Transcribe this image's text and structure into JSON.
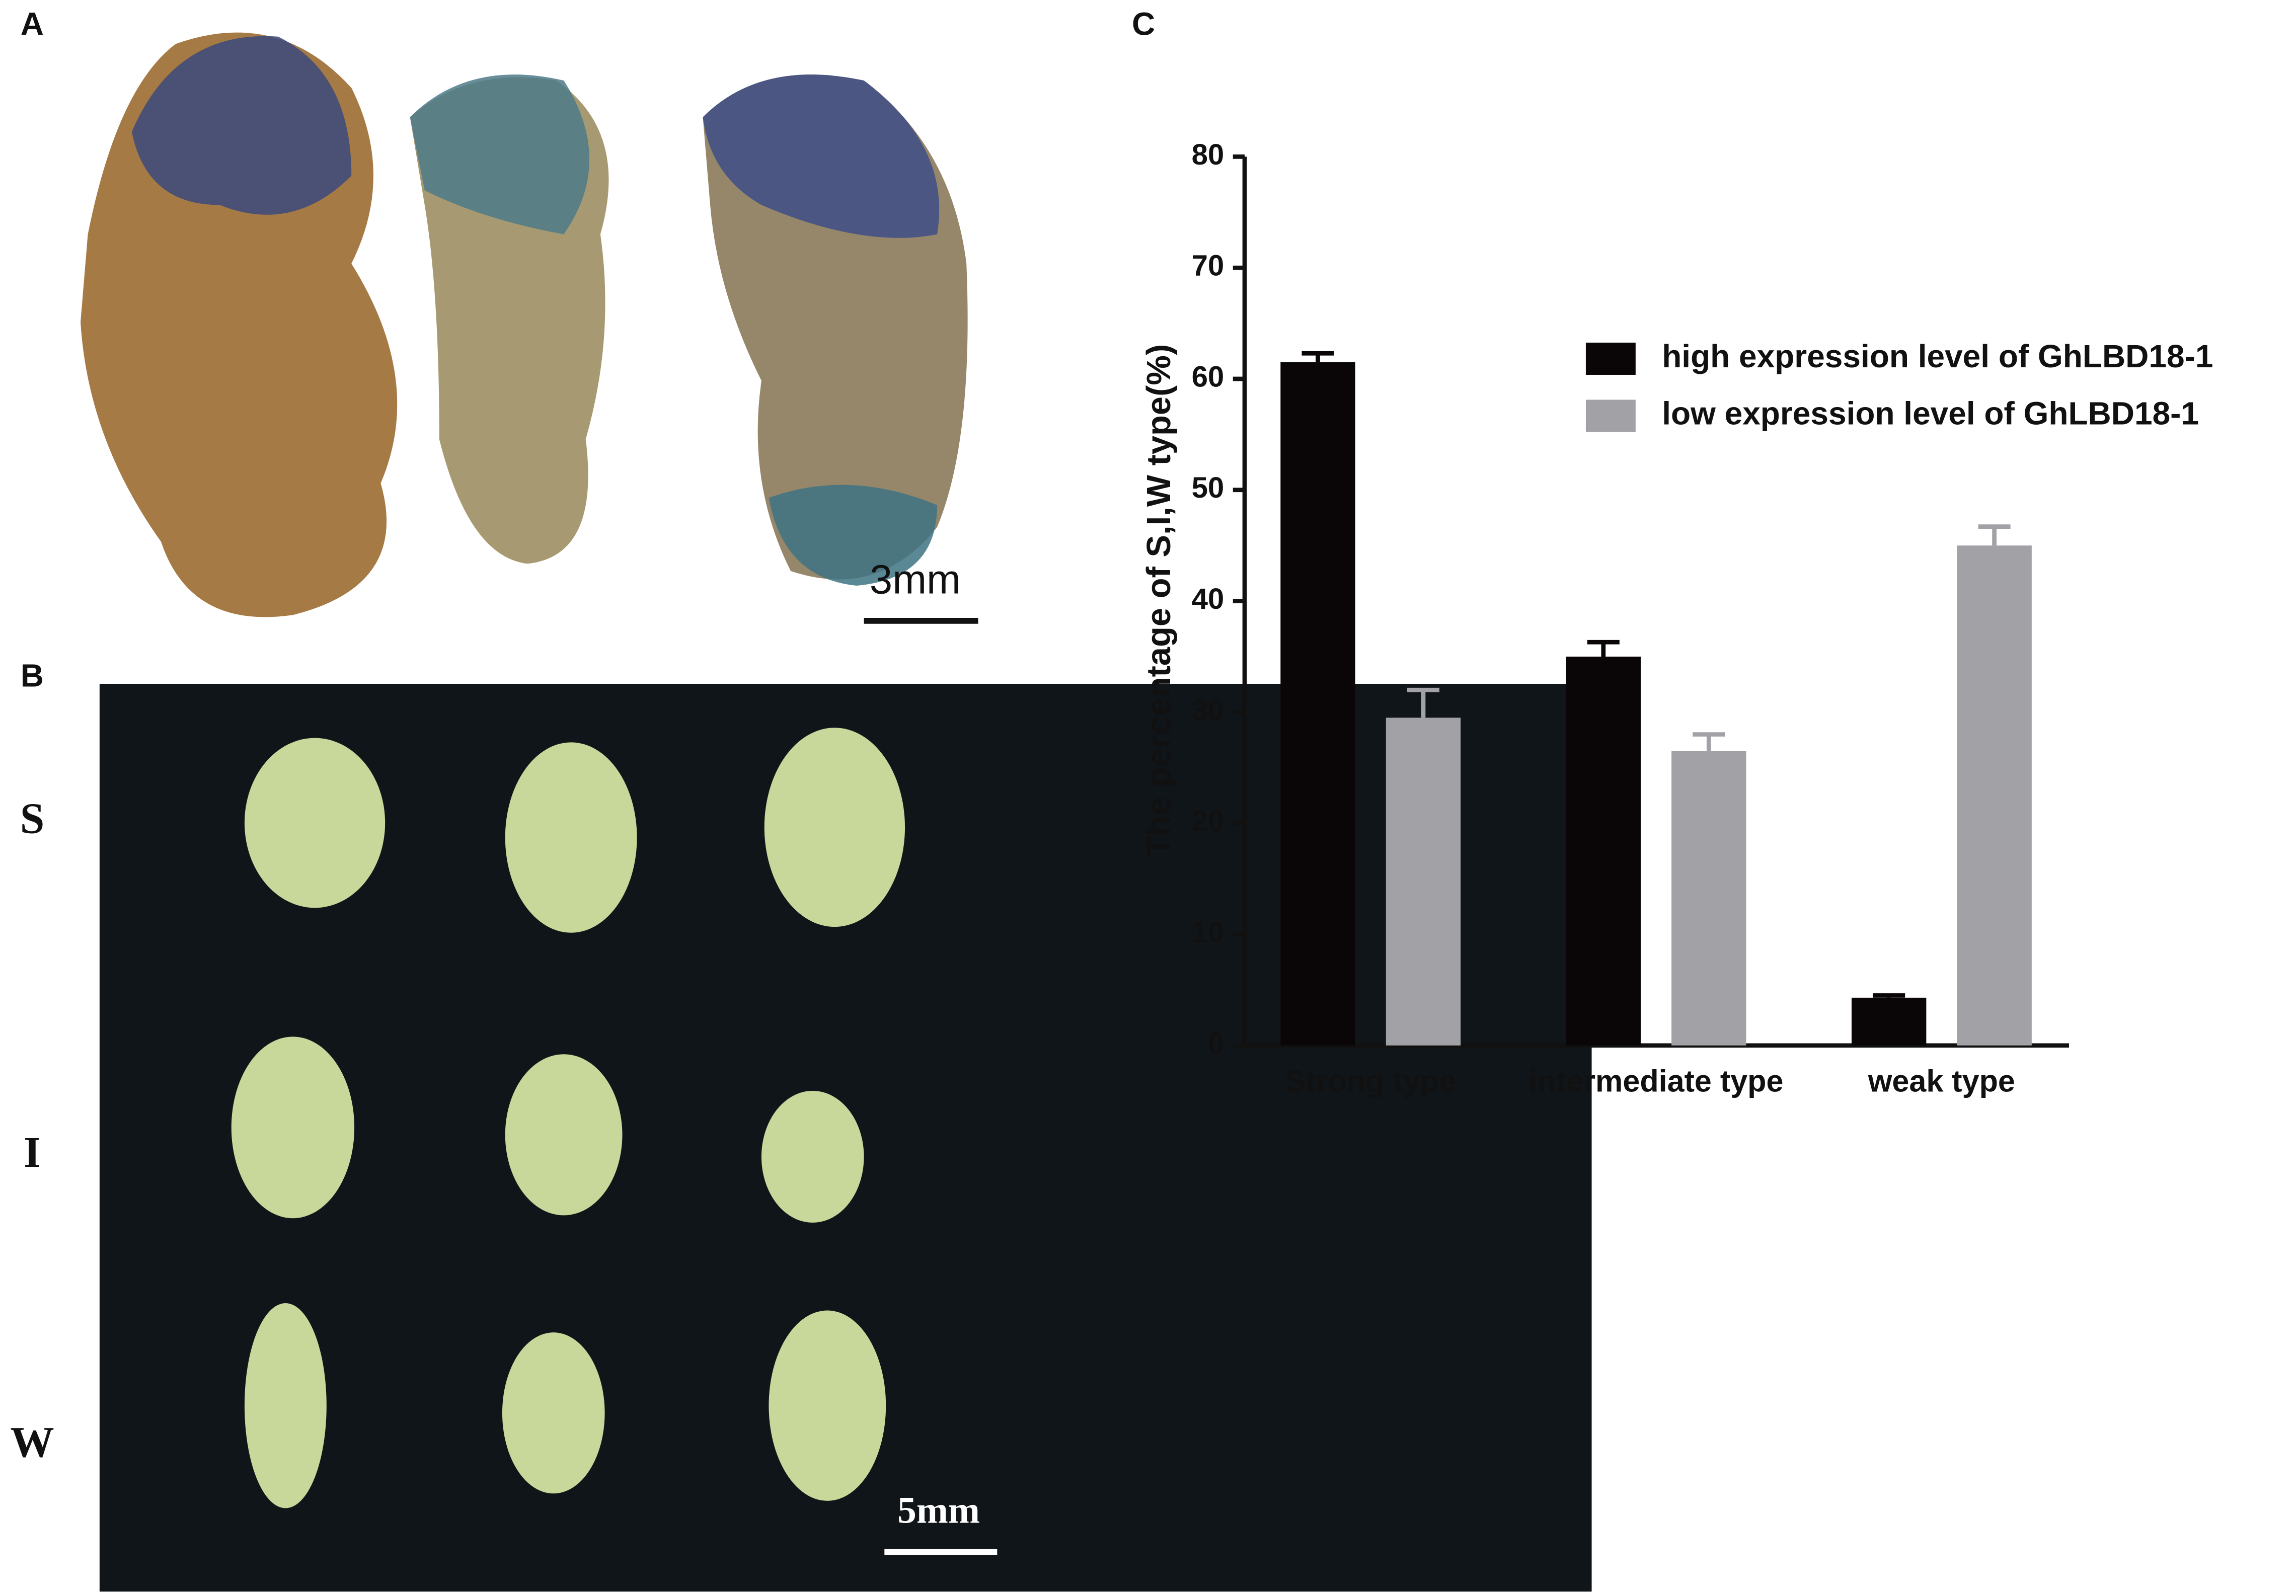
{
  "panels": {
    "A": {
      "label": "A",
      "scale_bar": "3mm"
    },
    "B": {
      "label": "B",
      "rows": [
        "S",
        "I",
        "W"
      ],
      "scale_bar": "5mm"
    },
    "C": {
      "label": "C"
    }
  },
  "chart_data": {
    "type": "bar",
    "ylabel": "The percentage of S,I,W type(%)",
    "categories": [
      "Strong type",
      "intermediate type",
      "weak type"
    ],
    "series": [
      {
        "name": "high expression level of GhLBD18-1",
        "color": "#0a0607",
        "values": [
          61.5,
          35,
          4.3
        ],
        "errors": [
          0.8,
          1.3,
          0.2
        ]
      },
      {
        "name": "low expression level of GhLBD18-1",
        "color": "#a2a1a6",
        "values": [
          29.5,
          26.5,
          45
        ],
        "errors": [
          2.5,
          1.5,
          1.7
        ]
      }
    ],
    "ylim": [
      0,
      80
    ],
    "yticks": [
      0,
      10,
      20,
      30,
      40,
      50,
      60,
      70,
      80
    ],
    "legend": "upper right",
    "error_bars": "upper"
  }
}
